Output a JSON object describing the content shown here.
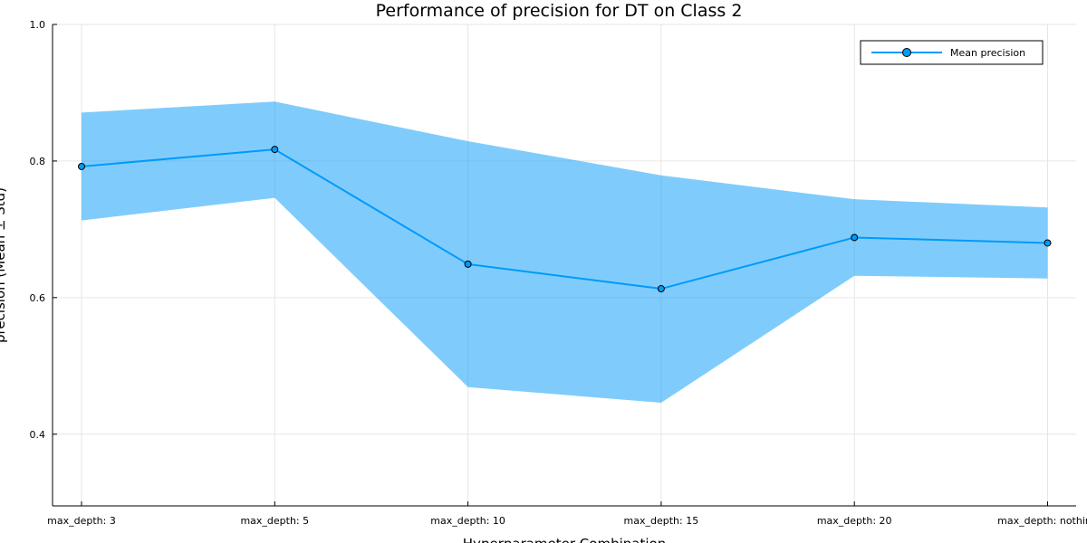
{
  "chart_data": {
    "type": "line",
    "title": "Performance of precision for DT on Class 2",
    "xlabel": "Hyperparameter Combination",
    "ylabel": "precision (Mean ± Std)",
    "categories": [
      "max_depth: 3",
      "max_depth: 5",
      "max_depth: 10",
      "max_depth: 15",
      "max_depth: 20",
      "max_depth: nothing"
    ],
    "series": [
      {
        "name": "Mean precision",
        "values": [
          0.792,
          0.817,
          0.649,
          0.613,
          0.688,
          0.68
        ],
        "upper": [
          0.871,
          0.887,
          0.829,
          0.779,
          0.744,
          0.732
        ],
        "lower": [
          0.713,
          0.746,
          0.469,
          0.446,
          0.632,
          0.628
        ]
      }
    ],
    "ylim": [
      0.295,
      1.0
    ],
    "yticks": [
      0.4,
      0.6,
      0.8,
      1.0
    ],
    "yticklabels": [
      "0.4",
      "0.6",
      "0.8",
      "1.0"
    ],
    "grid": true,
    "legend_position": "top-right",
    "colors": {
      "line": "#009af9",
      "band": "#009af9",
      "marker_edge": "#000000"
    }
  }
}
